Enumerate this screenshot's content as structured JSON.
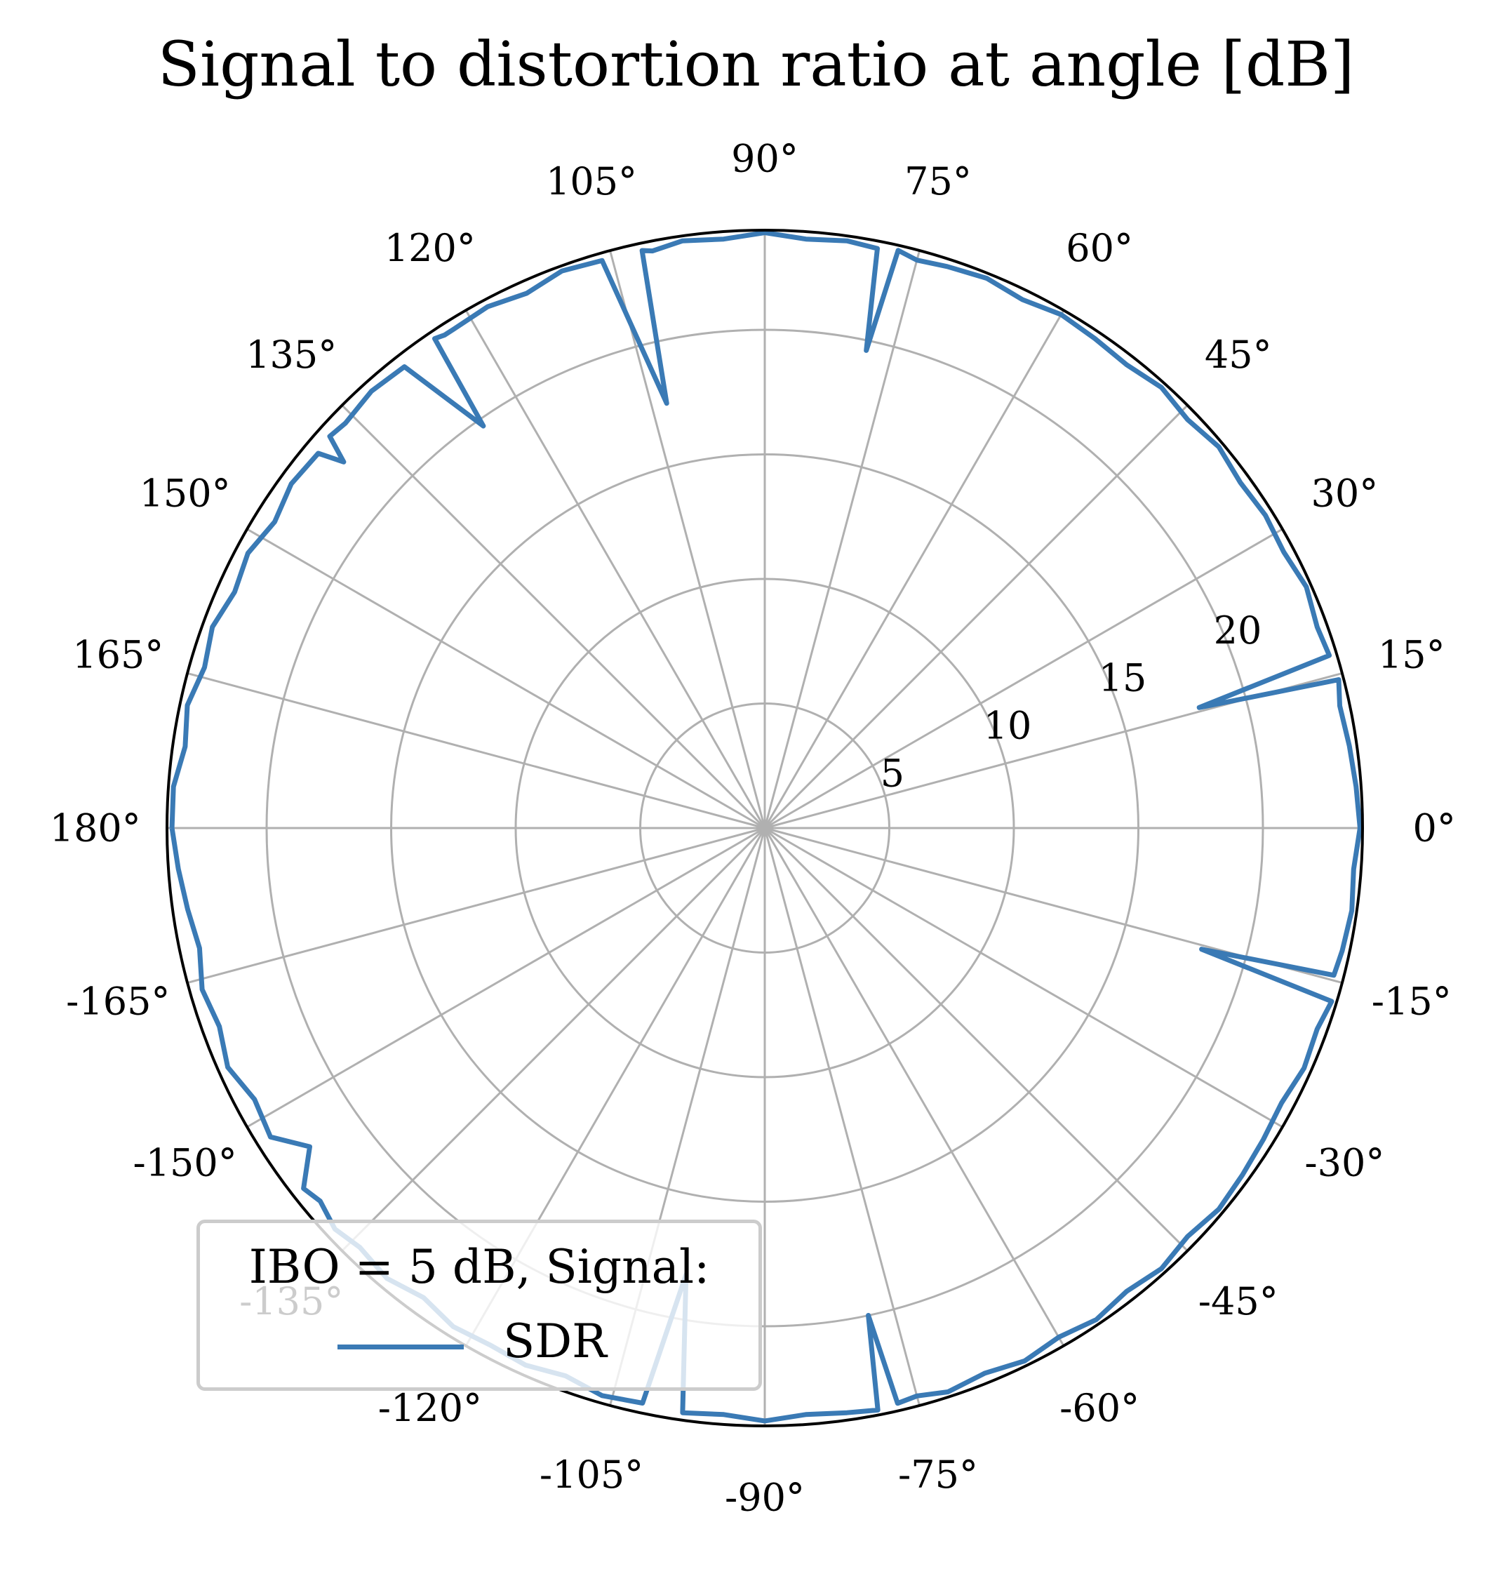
{
  "chart_data": {
    "type": "line",
    "projection": "polar",
    "title": "Signal to distortion ratio at angle [dB]",
    "theta_ticks": [
      "0°",
      "15°",
      "30°",
      "45°",
      "60°",
      "75°",
      "90°",
      "105°",
      "120°",
      "135°",
      "150°",
      "165°",
      "180°",
      "-165°",
      "-150°",
      "-135°",
      "-120°",
      "-105°",
      "-90°",
      "-75°",
      "-60°",
      "-45°",
      "-30°",
      "-15°"
    ],
    "r_ticks": [
      "5",
      "10",
      "15",
      "20"
    ],
    "r_tick_values": [
      5,
      10,
      15,
      20
    ],
    "r_tick_label_angle_deg": 22.5,
    "rlim": [
      0,
      24
    ],
    "theta_range_deg": [
      -180,
      180
    ],
    "grid": true,
    "legend": {
      "title": "IBO = 5 dB, Signal:",
      "placement": "lower-left"
    },
    "colors": {
      "series": "#3a7ab5",
      "grid": "#b0b0b0",
      "outline": "#000000"
    },
    "series": [
      {
        "name": "SDR",
        "theta_deg": [
          -180,
          -176,
          -172,
          -168,
          -164,
          -160,
          -156,
          -152,
          -148,
          -145,
          -142,
          -140,
          -137,
          -134,
          -130,
          -126,
          -122,
          -118,
          -114,
          -110,
          -106,
          -102,
          -100,
          -98,
          -94,
          -90,
          -86,
          -82,
          -79,
          -78,
          -77,
          -75,
          -72,
          -68,
          -64,
          -60,
          -56,
          -52,
          -48,
          -44,
          -40,
          -36,
          -32,
          -28,
          -24,
          -20,
          -17,
          -15.5,
          -14.5,
          -12,
          -8,
          -4,
          0,
          4,
          8,
          12,
          14.5,
          15.5,
          17,
          20,
          24,
          28,
          32,
          36,
          40,
          44,
          48,
          52,
          56,
          60,
          64,
          68,
          72,
          75,
          77,
          78,
          79,
          82,
          86,
          90,
          94,
          98,
          101,
          102,
          103,
          106,
          110,
          114,
          118,
          122,
          123,
          124,
          125,
          128,
          132,
          136,
          138,
          139,
          140,
          144,
          148,
          152,
          156,
          160,
          164,
          168,
          172,
          176,
          180
        ],
        "values": [
          23.8,
          23.6,
          23.4,
          23.2,
          23.5,
          23.3,
          23.6,
          23.2,
          23.4,
          22.3,
          23.5,
          23.3,
          23.6,
          23.4,
          23.6,
          23.3,
          23.6,
          23.5,
          23.6,
          23.4,
          23.7,
          23.6,
          18.2,
          23.7,
          23.6,
          23.8,
          23.6,
          23.7,
          23.8,
          20.0,
          23.7,
          23.6,
          23.8,
          23.6,
          23.8,
          23.6,
          23.8,
          23.6,
          23.8,
          23.6,
          23.8,
          23.7,
          23.6,
          23.5,
          23.7,
          23.6,
          23.8,
          18.2,
          23.6,
          23.7,
          23.8,
          23.7,
          23.9,
          23.8,
          23.7,
          23.6,
          23.8,
          18.1,
          23.7,
          23.6,
          23.8,
          23.6,
          23.7,
          23.6,
          23.8,
          23.6,
          23.8,
          23.6,
          23.7,
          23.8,
          23.6,
          23.8,
          23.7,
          23.6,
          23.8,
          19.6,
          23.7,
          23.8,
          23.7,
          23.9,
          23.7,
          23.8,
          23.6,
          23.7,
          17.5,
          23.7,
          23.8,
          23.5,
          23.7,
          23.6,
          23.6,
          23.7,
          19.7,
          23.5,
          23.6,
          23.4,
          23.5,
          22.4,
          23.4,
          23.5,
          23.2,
          23.5,
          23.3,
          23.6,
          23.4,
          23.7,
          23.5,
          23.8,
          23.8
        ]
      }
    ]
  }
}
